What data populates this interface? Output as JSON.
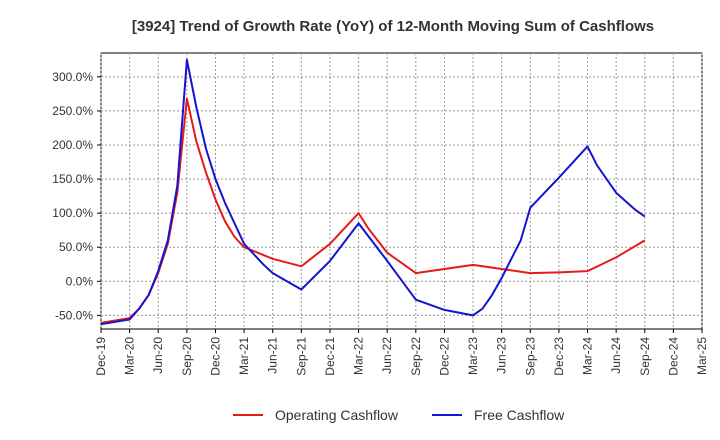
{
  "chart_data": {
    "type": "line",
    "title": "[3924]  Trend of Growth Rate (YoY) of 12-Month Moving Sum of Cashflows",
    "xlabel": "",
    "ylabel": "",
    "x_ticks": [
      "Dec-19",
      "Mar-20",
      "Jun-20",
      "Sep-20",
      "Dec-20",
      "Mar-21",
      "Jun-21",
      "Sep-21",
      "Dec-21",
      "Mar-22",
      "Jun-22",
      "Sep-22",
      "Dec-22",
      "Mar-23",
      "Jun-23",
      "Sep-23",
      "Dec-23",
      "Mar-24",
      "Jun-24",
      "Sep-24",
      "Dec-24",
      "Mar-25"
    ],
    "y_ticks": [
      "-50.0%",
      "0.0%",
      "50.0%",
      "100.0%",
      "150.0%",
      "200.0%",
      "250.0%",
      "300.0%"
    ],
    "ylim": [
      -70,
      335
    ],
    "grid": true,
    "legend_position": "bottom",
    "series": [
      {
        "name": "Operating Cashflow",
        "color": "#e8191a",
        "points": [
          [
            "Dec-19",
            -61
          ],
          [
            "Mar-20",
            -54
          ],
          [
            "Apr-20",
            -40
          ],
          [
            "May-20",
            -20
          ],
          [
            "Jun-20",
            12
          ],
          [
            "Jul-20",
            55
          ],
          [
            "Aug-20",
            130
          ],
          [
            "Sep-20",
            268
          ],
          [
            "Oct-20",
            205
          ],
          [
            "Nov-20",
            160
          ],
          [
            "Dec-20",
            120
          ],
          [
            "Jan-21",
            88
          ],
          [
            "Feb-21",
            65
          ],
          [
            "Mar-21",
            50
          ],
          [
            "Jun-21",
            33
          ],
          [
            "Sep-21",
            22
          ],
          [
            "Dec-21",
            55
          ],
          [
            "Feb-22",
            85
          ],
          [
            "Mar-22",
            100
          ],
          [
            "Apr-22",
            78
          ],
          [
            "Jun-22",
            42
          ],
          [
            "Sep-22",
            12
          ],
          [
            "Dec-22",
            18
          ],
          [
            "Mar-23",
            24
          ],
          [
            "Jun-23",
            18
          ],
          [
            "Sep-23",
            12
          ],
          [
            "Dec-23",
            13
          ],
          [
            "Mar-24",
            15
          ],
          [
            "Jun-24",
            35
          ],
          [
            "Sep-24",
            60
          ]
        ]
      },
      {
        "name": "Free Cashflow",
        "color": "#1414d2",
        "points": [
          [
            "Dec-19",
            -63
          ],
          [
            "Mar-20",
            -56
          ],
          [
            "Apr-20",
            -40
          ],
          [
            "May-20",
            -20
          ],
          [
            "Jun-20",
            15
          ],
          [
            "Jul-20",
            60
          ],
          [
            "Aug-20",
            140
          ],
          [
            "Sep-20",
            325
          ],
          [
            "Oct-20",
            255
          ],
          [
            "Nov-20",
            195
          ],
          [
            "Dec-20",
            150
          ],
          [
            "Jan-21",
            115
          ],
          [
            "Feb-21",
            85
          ],
          [
            "Mar-21",
            55
          ],
          [
            "Apr-21",
            40
          ],
          [
            "May-21",
            25
          ],
          [
            "Jun-21",
            12
          ],
          [
            "Sep-21",
            -12
          ],
          [
            "Dec-21",
            30
          ],
          [
            "Mar-22",
            85
          ],
          [
            "Jun-22",
            30
          ],
          [
            "Sep-22",
            -27
          ],
          [
            "Dec-22",
            -42
          ],
          [
            "Mar-23",
            -50
          ],
          [
            "Apr-23",
            -40
          ],
          [
            "May-23",
            -20
          ],
          [
            "Jun-23",
            5
          ],
          [
            "Aug-23",
            60
          ],
          [
            "Sep-23",
            108
          ],
          [
            "Dec-23",
            152
          ],
          [
            "Mar-24",
            198
          ],
          [
            "Apr-24",
            170
          ],
          [
            "Jun-24",
            130
          ],
          [
            "Aug-24",
            105
          ],
          [
            "Sep-24",
            95
          ]
        ]
      }
    ]
  }
}
